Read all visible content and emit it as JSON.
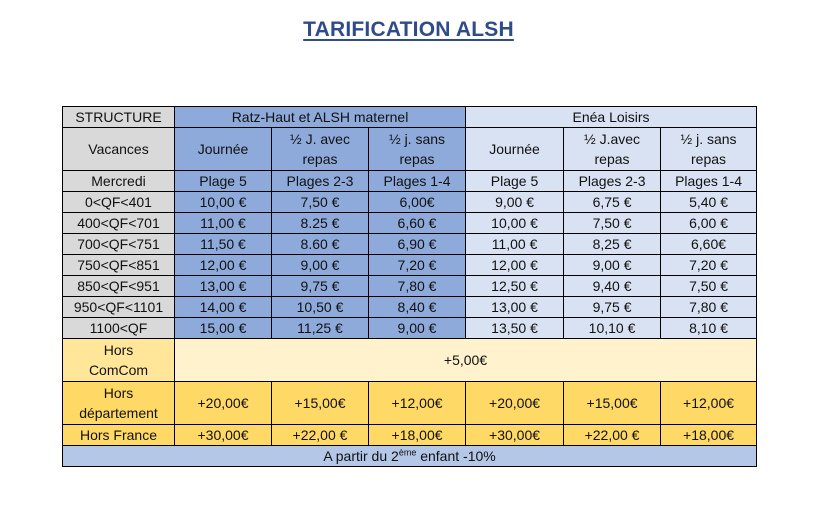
{
  "title": "TARIFICATION ALSH",
  "header": {
    "structure": "STRUCTURE",
    "group1": "Ratz-Haut et ALSH maternel",
    "group2": "Enéa Loisirs",
    "vacances": "Vacances",
    "cols": [
      [
        "Journée",
        ""
      ],
      [
        "½ J. avec",
        "repas"
      ],
      [
        "½ j. sans",
        "repas"
      ],
      [
        "Journée",
        ""
      ],
      [
        "½ J.avec",
        "repas"
      ],
      [
        "½ j. sans",
        "repas"
      ]
    ],
    "mercredi": "Mercredi",
    "plages": [
      "Plage 5",
      "Plages 2-3",
      "Plages 1-4",
      "Plage 5",
      "Plages 2-3",
      "Plages 1-4"
    ]
  },
  "rows": [
    {
      "label": "0<QF<401",
      "values": [
        "10,00 €",
        "7,50 €",
        "6,00€",
        "9,00 €",
        "6,75 €",
        "5,40 €"
      ]
    },
    {
      "label": "400<QF<701",
      "values": [
        "11,00 €",
        "8.25 €",
        "6,60 €",
        "10,00 €",
        "7,50 €",
        "6,00 €"
      ]
    },
    {
      "label": "700<QF<751",
      "values": [
        "11,50 €",
        "8.60 €",
        "6,90 €",
        "11,00 €",
        "8,25 €",
        "6,60€"
      ]
    },
    {
      "label": "750<QF<851",
      "values": [
        "12,00 €",
        "9,00 €",
        "7,20 €",
        "12,00 €",
        "9,00 €",
        "7,20 €"
      ]
    },
    {
      "label": "850<QF<951",
      "values": [
        "13,00 €",
        "9,75 €",
        "7,80 €",
        "12,50 €",
        "9,40 €",
        "7,50 €"
      ]
    },
    {
      "label": "950<QF<1101",
      "values": [
        "14,00 €",
        "10,50 €",
        "8,40 €",
        "13,00 €",
        "9,75 €",
        "7,80 €"
      ]
    },
    {
      "label": "1100<QF",
      "values": [
        "15,00 €",
        "11,25 €",
        "9,00 €",
        "13,50 €",
        "10,10 €",
        "8,10 €"
      ]
    }
  ],
  "hors_comcom": {
    "label1": "Hors",
    "label2": "ComCom",
    "value": "+5,00€"
  },
  "hors_dept": {
    "label1": "Hors",
    "label2": "département",
    "values": [
      "+20,00€",
      "+15,00€",
      "+12,00€",
      "+20,00€",
      "+15,00€",
      "+12,00€"
    ]
  },
  "hors_france": {
    "label": "Hors France",
    "values": [
      "+30,00€",
      "+22,00 €",
      "+18,00€",
      "+30,00€",
      "+22,00 €",
      "+18,00€"
    ]
  },
  "footer": {
    "prefix": "A partir du 2",
    "sup": "ème",
    "suffix": " enfant -10%"
  }
}
